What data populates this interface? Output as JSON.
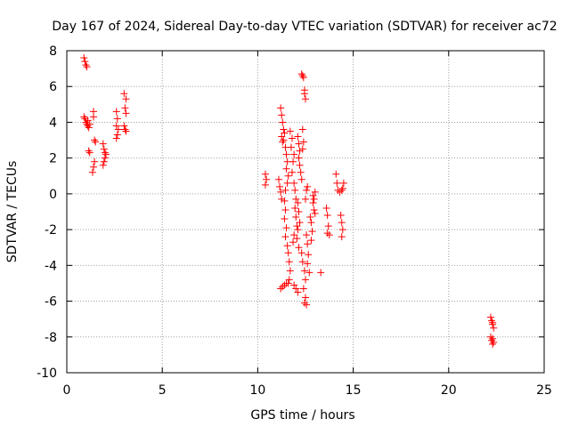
{
  "chart_data": {
    "type": "scatter",
    "title": "Day 167 of 2024, Sidereal Day-to-day VTEC variation (SDTVAR) for receiver ac72",
    "xlabel": "GPS time / hours",
    "ylabel": "SDTVAR / TECUs",
    "xlim": [
      0,
      25
    ],
    "ylim": [
      -10,
      8
    ],
    "xticks": [
      0,
      5,
      10,
      15,
      20,
      25
    ],
    "yticks": [
      -10,
      -8,
      -6,
      -4,
      -2,
      0,
      2,
      4,
      6,
      8
    ],
    "grid": true,
    "marker": "+",
    "color": "#ff0000",
    "series": [
      {
        "name": "SDTVAR",
        "points": [
          [
            0.9,
            7.6
          ],
          [
            0.95,
            7.4
          ],
          [
            1.0,
            7.2
          ],
          [
            1.05,
            7.1
          ],
          [
            0.9,
            4.3
          ],
          [
            0.95,
            4.2
          ],
          [
            1.0,
            4.0
          ],
          [
            1.05,
            3.9
          ],
          [
            1.1,
            3.8
          ],
          [
            1.15,
            3.7
          ],
          [
            1.2,
            3.9
          ],
          [
            1.1,
            4.1
          ],
          [
            1.15,
            2.4
          ],
          [
            1.2,
            2.3
          ],
          [
            1.4,
            4.6
          ],
          [
            1.4,
            4.3
          ],
          [
            1.45,
            3.0
          ],
          [
            1.5,
            2.9
          ],
          [
            1.45,
            1.8
          ],
          [
            1.4,
            1.5
          ],
          [
            1.35,
            1.2
          ],
          [
            1.9,
            2.8
          ],
          [
            1.95,
            2.5
          ],
          [
            2.0,
            2.3
          ],
          [
            2.0,
            2.0
          ],
          [
            1.95,
            1.8
          ],
          [
            1.9,
            1.6
          ],
          [
            2.05,
            2.2
          ],
          [
            2.6,
            4.6
          ],
          [
            2.65,
            4.2
          ],
          [
            2.6,
            3.8
          ],
          [
            2.7,
            3.6
          ],
          [
            2.65,
            3.3
          ],
          [
            2.6,
            3.1
          ],
          [
            3.0,
            5.6
          ],
          [
            3.1,
            5.3
          ],
          [
            3.05,
            4.8
          ],
          [
            3.1,
            4.5
          ],
          [
            3.0,
            3.8
          ],
          [
            3.05,
            3.6
          ],
          [
            3.1,
            3.5
          ],
          [
            10.4,
            1.1
          ],
          [
            10.45,
            0.8
          ],
          [
            10.4,
            0.5
          ],
          [
            11.1,
            0.8
          ],
          [
            11.15,
            0.4
          ],
          [
            11.2,
            0.1
          ],
          [
            11.25,
            -0.3
          ],
          [
            11.2,
            4.8
          ],
          [
            11.25,
            4.4
          ],
          [
            11.3,
            4.0
          ],
          [
            11.35,
            3.6
          ],
          [
            11.25,
            3.2
          ],
          [
            11.3,
            2.9
          ],
          [
            11.4,
            3.4
          ],
          [
            11.35,
            3.0
          ],
          [
            11.45,
            2.6
          ],
          [
            11.5,
            2.2
          ],
          [
            11.55,
            1.8
          ],
          [
            11.5,
            1.4
          ],
          [
            11.6,
            1.0
          ],
          [
            11.55,
            0.6
          ],
          [
            11.45,
            0.2
          ],
          [
            11.4,
            -0.4
          ],
          [
            11.45,
            -0.9
          ],
          [
            11.4,
            -1.4
          ],
          [
            11.5,
            -1.9
          ],
          [
            11.45,
            -2.4
          ],
          [
            11.55,
            -2.9
          ],
          [
            11.6,
            -3.3
          ],
          [
            11.65,
            -3.8
          ],
          [
            11.7,
            -4.3
          ],
          [
            11.65,
            -4.8
          ],
          [
            11.6,
            -5.0
          ],
          [
            11.2,
            -5.3
          ],
          [
            11.3,
            -5.2
          ],
          [
            11.4,
            -5.1
          ],
          [
            11.5,
            -5.0
          ],
          [
            11.7,
            3.5
          ],
          [
            11.8,
            3.1
          ],
          [
            11.75,
            2.6
          ],
          [
            11.9,
            2.2
          ],
          [
            11.85,
            1.8
          ],
          [
            11.8,
            1.2
          ],
          [
            11.9,
            0.6
          ],
          [
            11.95,
            0.2
          ],
          [
            12.0,
            -0.3
          ],
          [
            11.95,
            -0.8
          ],
          [
            12.0,
            -1.3
          ],
          [
            12.05,
            -1.8
          ],
          [
            11.9,
            -2.3
          ],
          [
            11.85,
            -2.7
          ],
          [
            11.9,
            -5.1
          ],
          [
            12.0,
            -5.3
          ],
          [
            12.1,
            -5.5
          ],
          [
            12.1,
            3.2
          ],
          [
            12.15,
            2.8
          ],
          [
            12.2,
            2.4
          ],
          [
            12.15,
            2.0
          ],
          [
            12.2,
            1.6
          ],
          [
            12.25,
            1.2
          ],
          [
            12.3,
            0.8
          ],
          [
            12.35,
            3.6
          ],
          [
            12.4,
            2.9
          ],
          [
            12.35,
            2.5
          ],
          [
            12.1,
            -0.5
          ],
          [
            12.15,
            -1.0
          ],
          [
            12.2,
            -1.6
          ],
          [
            12.1,
            -2.0
          ],
          [
            12.05,
            -2.5
          ],
          [
            12.15,
            -3.0
          ],
          [
            12.3,
            6.7
          ],
          [
            12.35,
            6.6
          ],
          [
            12.4,
            6.5
          ],
          [
            12.45,
            5.8
          ],
          [
            12.45,
            5.6
          ],
          [
            12.5,
            5.3
          ],
          [
            12.3,
            -3.3
          ],
          [
            12.35,
            -3.8
          ],
          [
            12.45,
            -4.3
          ],
          [
            12.5,
            -4.8
          ],
          [
            12.4,
            -5.3
          ],
          [
            12.5,
            -5.8
          ],
          [
            12.45,
            -6.1
          ],
          [
            12.55,
            -6.2
          ],
          [
            12.55,
            -2.3
          ],
          [
            12.6,
            -2.8
          ],
          [
            12.65,
            -3.4
          ],
          [
            12.6,
            -3.9
          ],
          [
            12.7,
            -4.4
          ],
          [
            12.75,
            -1.3
          ],
          [
            12.8,
            -1.6
          ],
          [
            12.85,
            -2.1
          ],
          [
            12.8,
            -2.6
          ],
          [
            12.9,
            -0.5
          ],
          [
            12.95,
            -0.9
          ],
          [
            13.0,
            -1.1
          ],
          [
            12.95,
            -0.3
          ],
          [
            12.9,
            -0.1
          ],
          [
            13.0,
            0.1
          ],
          [
            12.5,
            -0.3
          ],
          [
            12.55,
            0.2
          ],
          [
            12.6,
            0.4
          ],
          [
            13.3,
            -4.4
          ],
          [
            13.6,
            -0.8
          ],
          [
            13.65,
            -1.2
          ],
          [
            13.7,
            -1.8
          ],
          [
            13.65,
            -2.2
          ],
          [
            13.75,
            -2.3
          ],
          [
            14.1,
            1.1
          ],
          [
            14.15,
            0.6
          ],
          [
            14.2,
            0.2
          ],
          [
            14.3,
            0.1
          ],
          [
            14.4,
            0.2
          ],
          [
            14.5,
            0.6
          ],
          [
            14.45,
            0.3
          ],
          [
            14.35,
            -1.2
          ],
          [
            14.4,
            -1.6
          ],
          [
            14.45,
            -2.0
          ],
          [
            14.4,
            -2.4
          ],
          [
            22.2,
            -6.9
          ],
          [
            22.25,
            -7.1
          ],
          [
            22.3,
            -7.3
          ],
          [
            22.35,
            -7.5
          ],
          [
            22.3,
            -7.2
          ],
          [
            22.2,
            -8.0
          ],
          [
            22.25,
            -8.2
          ],
          [
            22.3,
            -8.1
          ],
          [
            22.35,
            -8.3
          ],
          [
            22.3,
            -8.4
          ]
        ]
      }
    ]
  }
}
